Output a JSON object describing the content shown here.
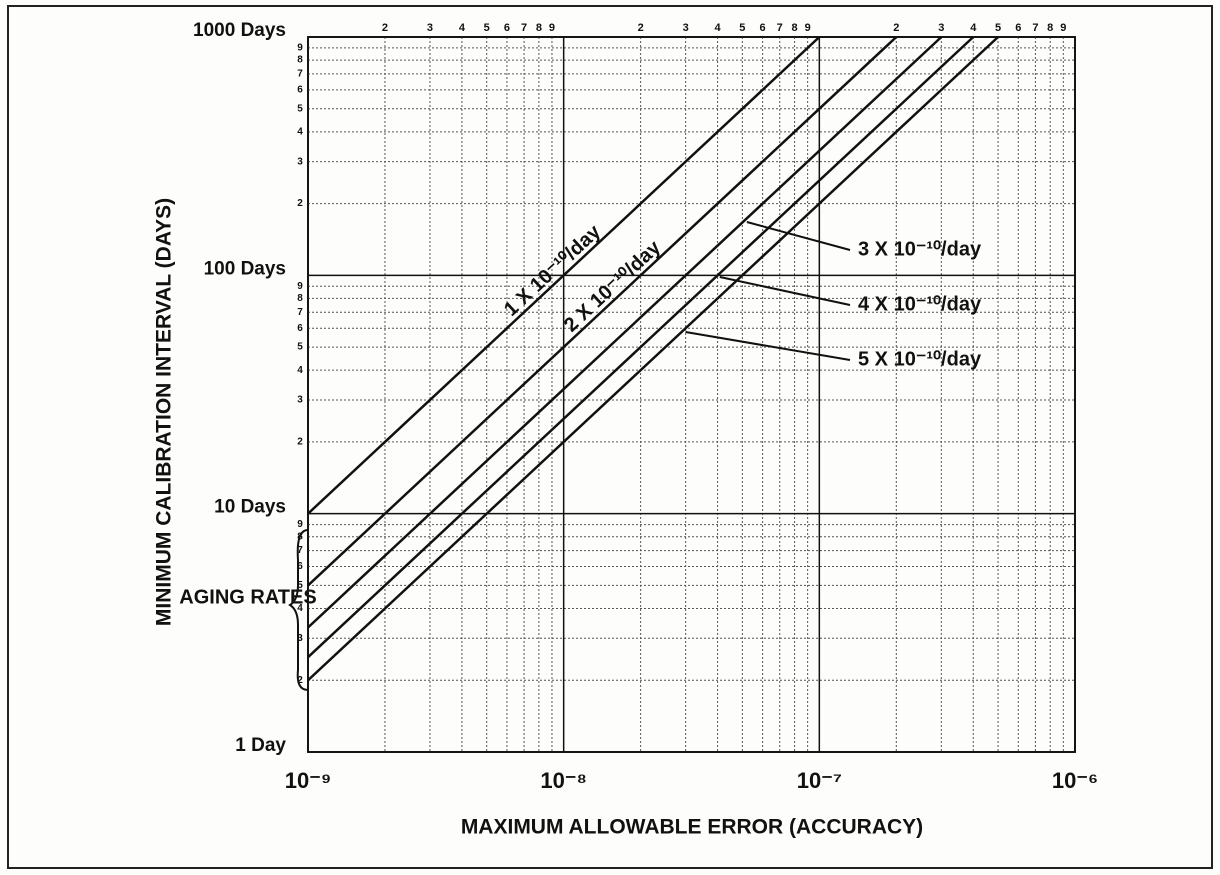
{
  "chart_data": {
    "type": "line",
    "xlabel": "MAXIMUM ALLOWABLE ERROR (ACCURACY)",
    "ylabel": "MINIMUM CALIBRATION INTERVAL (DAYS)",
    "annotation": "AGING RATES",
    "log_x": true,
    "log_y": true,
    "grid": true,
    "color": "#111111",
    "xlim": [
      1e-09,
      1e-06
    ],
    "ylim": [
      1,
      1000
    ],
    "xticks": [
      {
        "value": 1e-09,
        "label": "10⁻⁹"
      },
      {
        "value": 1e-08,
        "label": "10⁻⁸"
      },
      {
        "value": 1e-07,
        "label": "10⁻⁷"
      },
      {
        "value": 1e-06,
        "label": "10⁻⁶"
      }
    ],
    "yticks": [
      {
        "value": 1,
        "label": "1 Day"
      },
      {
        "value": 10,
        "label": "10 Days"
      },
      {
        "value": 100,
        "label": "100 Days"
      },
      {
        "value": 1000,
        "label": "1000 Days"
      }
    ],
    "minor_digits": [
      2,
      3,
      4,
      5,
      6,
      7,
      8,
      9
    ],
    "series": [
      {
        "name": "1 X 10⁻¹⁰/day",
        "x": [
          1e-09,
          1e-07
        ],
        "values": [
          10,
          1000
        ]
      },
      {
        "name": "2 X 10⁻¹⁰/day",
        "x": [
          1e-09,
          2e-07
        ],
        "values": [
          5,
          1000
        ]
      },
      {
        "name": "3 X 10⁻¹⁰/day",
        "x": [
          1e-09,
          3e-07
        ],
        "values": [
          3.33,
          1000
        ]
      },
      {
        "name": "4 X 10⁻¹⁰/day",
        "x": [
          1e-09,
          4e-07
        ],
        "values": [
          2.5,
          1000
        ]
      },
      {
        "name": "5 X 10⁻¹⁰/day",
        "x": [
          1e-09,
          5e-07
        ],
        "values": [
          2,
          1000
        ]
      }
    ]
  }
}
